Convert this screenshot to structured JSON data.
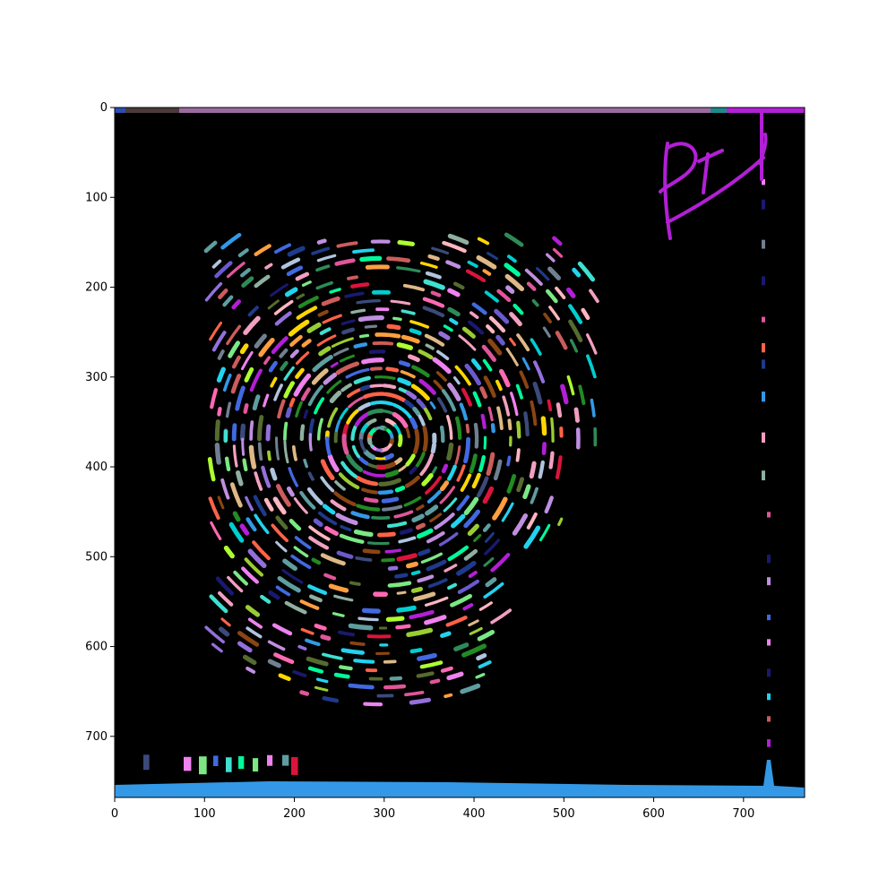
{
  "image": {
    "description_free": true,
    "colormap_style": "random-label",
    "background_color": "#000000",
    "accent_colors": [
      "#b21fd6",
      "#3399e6",
      "#22d3ee",
      "#9b6ba0",
      "#f2a0c0",
      "#7be884"
    ]
  },
  "axes": {
    "x_range": [
      0,
      768
    ],
    "y_range": [
      0,
      768
    ],
    "y_inverted": true,
    "x_ticks": [
      "0",
      "100",
      "200",
      "300",
      "400",
      "500",
      "600",
      "700"
    ],
    "y_ticks": [
      "0",
      "100",
      "200",
      "300",
      "400",
      "500",
      "600",
      "700"
    ]
  }
}
